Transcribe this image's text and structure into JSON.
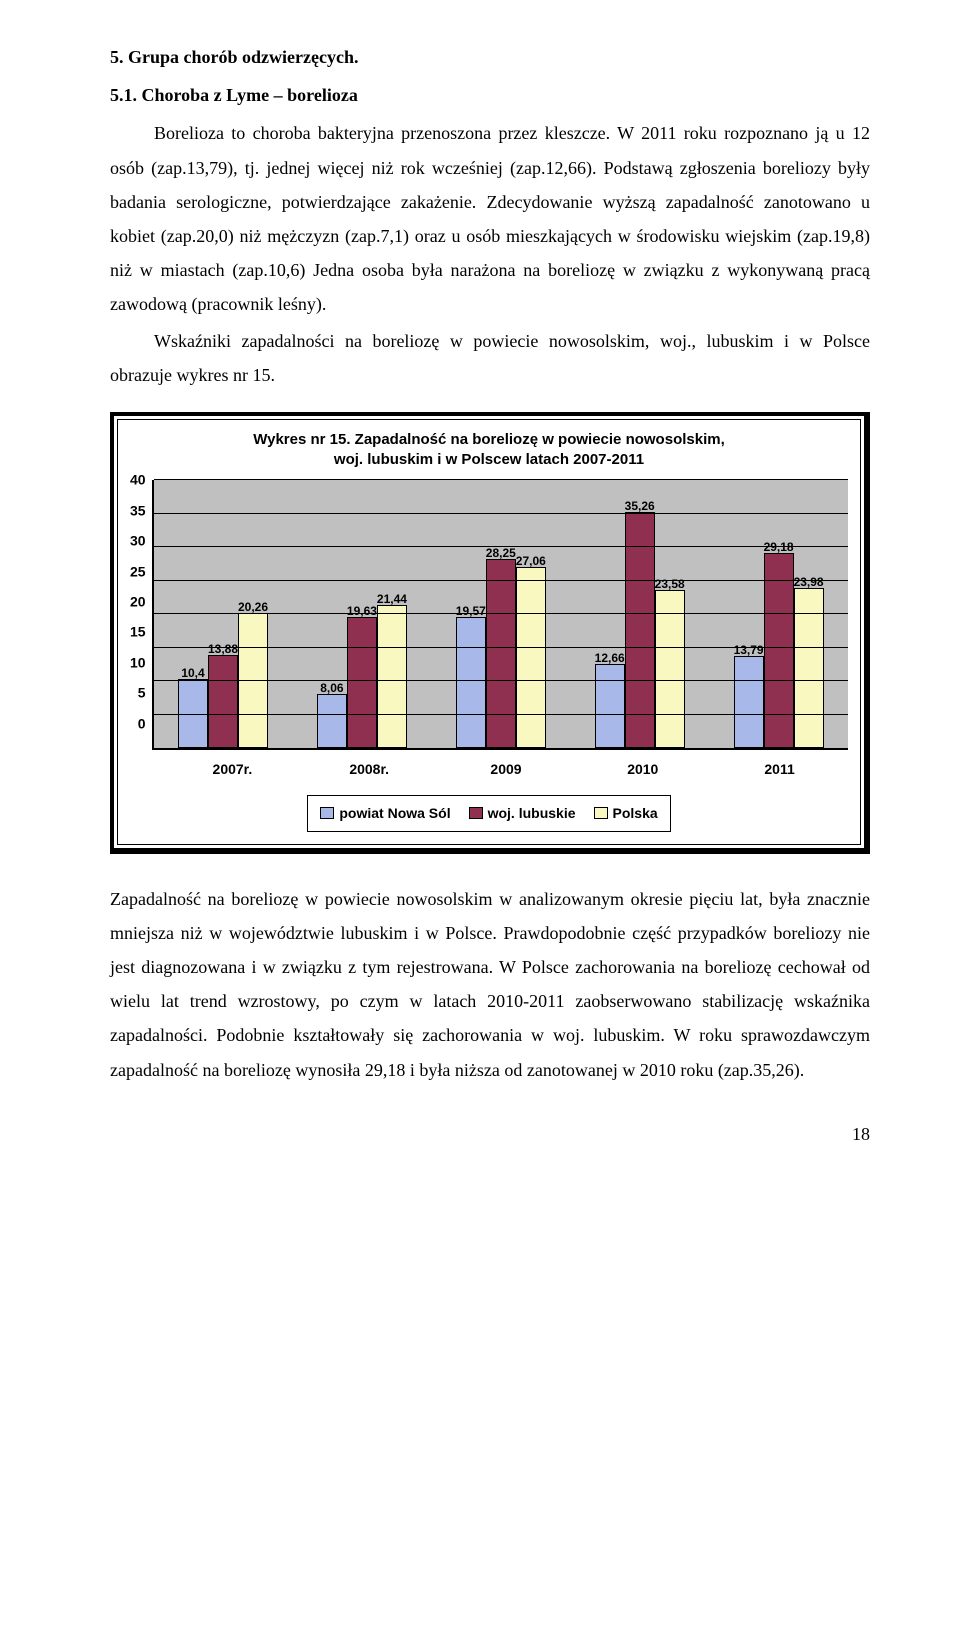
{
  "heading1": "5.   Grupa chorób odzwierzęcych.",
  "heading2": "5.1. Choroba z Lyme – borelioza",
  "para1": "Borelioza to choroba bakteryjna przenoszona przez kleszcze. W 2011 roku rozpoznano ją u 12 osób (zap.13,79), tj. jednej więcej niż rok wcześniej (zap.12,66). Podstawą zgłoszenia boreliozy były badania serologiczne, potwierdzające zakażenie. Zdecydowanie wyższą zapadalność zanotowano u kobiet (zap.20,0) niż mężczyzn (zap.7,1) oraz u osób mieszkających w środowisku wiejskim (zap.19,8) niż w miastach (zap.10,6) Jedna osoba była narażona na boreliozę w związku z wykonywaną pracą zawodową (pracownik leśny).",
  "para2": "Wskaźniki zapadalności na boreliozę w powiecie nowosolskim, woj., lubuskim i w Polsce obrazuje wykres nr 15.",
  "chart": {
    "title_l1": "Wykres nr 15. Zapadalność na boreliozę w powiecie nowosolskim,",
    "title_l2": "woj. lubuskim i w Polscew latach 2007-2011",
    "ymax": 40,
    "ystep": 5,
    "yticks": [
      "40",
      "35",
      "30",
      "25",
      "20",
      "15",
      "10",
      "5",
      "0"
    ],
    "categories": [
      "2007r.",
      "2008r.",
      "2009",
      "2010",
      "2011"
    ],
    "series": [
      {
        "name": "powiat Nowa Sól",
        "color": "#a8b8e8"
      },
      {
        "name": "woj. lubuskie",
        "color": "#903050"
      },
      {
        "name": "Polska",
        "color": "#f8f8c0"
      }
    ],
    "groups": [
      {
        "v": [
          10.4,
          13.88,
          20.26
        ],
        "labels": [
          "10,4",
          "13,88",
          "20,26"
        ]
      },
      {
        "v": [
          8.06,
          19.63,
          21.44
        ],
        "labels": [
          "8,06",
          "19,63",
          "21,44"
        ]
      },
      {
        "v": [
          19.57,
          28.25,
          27.06
        ],
        "labels": [
          "19,57",
          "28,25",
          "27,06"
        ]
      },
      {
        "v": [
          12.66,
          35.26,
          23.58
        ],
        "labels": [
          "12,66",
          "35,26",
          "23,58"
        ]
      },
      {
        "v": [
          13.79,
          29.18,
          23.98
        ],
        "labels": [
          "13,79",
          "29,18",
          "23,98"
        ]
      }
    ],
    "plot_bg": "#c0c0c0",
    "grid_color": "#000000"
  },
  "para3": "Zapadalność na boreliozę w  powiecie nowosolskim w analizowanym okresie pięciu lat, była znacznie mniejsza niż w województwie lubuskim i w Polsce. Prawdopodobnie część przypadków boreliozy nie jest diagnozowana i  w związku z tym rejestrowana. W Polsce zachorowania na boreliozę cechował  od wielu lat trend wzrostowy, po czym w latach 2010-2011 zaobserwowano stabilizację wskaźnika zapadalności. Podobnie kształtowały się zachorowania w woj. lubuskim. W roku sprawozdawczym zapadalność na boreliozę  wynosiła 29,18 i była niższa od zanotowanej w 2010 roku (zap.35,26).",
  "page_number": "18"
}
